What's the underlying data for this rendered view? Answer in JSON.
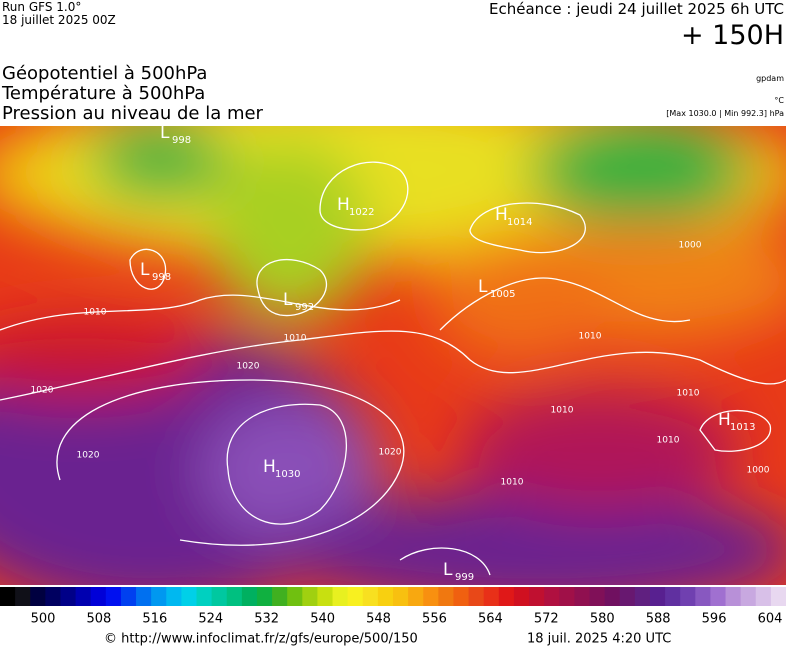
{
  "header": {
    "run": "Run GFS 1.0°",
    "run_date": "18 juillet 2025 00Z",
    "valid": "Echéance : jeudi 24 juillet 2025 6h UTC",
    "lead": "+ 150H",
    "titles": [
      "Géopotentiel à 500hPa",
      "Température à 500hPa",
      "Pression au niveau de la mer"
    ],
    "units": [
      "gpdam",
      "°C",
      "[Max 1030.0 | Min 992.3] hPa"
    ]
  },
  "pressure_centers": [
    {
      "type": "L",
      "value": "998"
    },
    {
      "type": "H",
      "value": "1022"
    },
    {
      "type": "L",
      "value": "998"
    },
    {
      "type": "L",
      "value": "992"
    },
    {
      "type": "H",
      "value": "1014"
    },
    {
      "type": "L",
      "value": "1005"
    },
    {
      "type": "H",
      "value": "1013"
    },
    {
      "type": "H",
      "value": "1030"
    },
    {
      "type": "L",
      "value": "999"
    }
  ],
  "isobar_labels": [
    "1010",
    "1010",
    "1020",
    "1020",
    "1020",
    "1020",
    "1010",
    "1010",
    "1010",
    "1010",
    "1000",
    "1010",
    "1000"
  ],
  "colorbar": {
    "ticks": [
      "500",
      "508",
      "516",
      "524",
      "532",
      "540",
      "548",
      "556",
      "564",
      "572",
      "580",
      "588",
      "596",
      "604"
    ]
  },
  "footer": {
    "source": "© http://www.infoclimat.fr/z/gfs/europe/500/150",
    "issued": "18 juil. 2025  4:20 UTC"
  }
}
